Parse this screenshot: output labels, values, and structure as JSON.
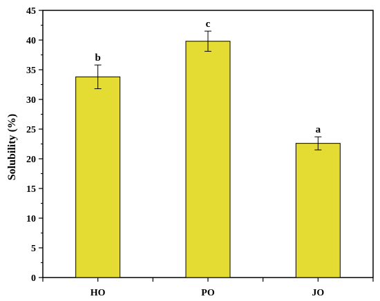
{
  "chart_data": {
    "type": "bar",
    "categories": [
      "HO",
      "PO",
      "JO"
    ],
    "values": [
      33.8,
      39.8,
      22.6
    ],
    "errors": [
      2.0,
      1.7,
      1.1
    ],
    "significance_labels": [
      "b",
      "c",
      "a"
    ],
    "ylabel": "Solubility (%)",
    "xlabel": "",
    "ylim": [
      0,
      45
    ],
    "y_ticks": [
      0,
      5,
      10,
      15,
      20,
      25,
      30,
      35,
      40,
      45
    ],
    "y_tick_labels": [
      "0",
      "5",
      "10",
      "15",
      "20",
      "25",
      "30",
      "35",
      "40",
      "45"
    ],
    "grid": false,
    "bar_color": "#e5dc33",
    "bar_edge_color": "#000000"
  }
}
